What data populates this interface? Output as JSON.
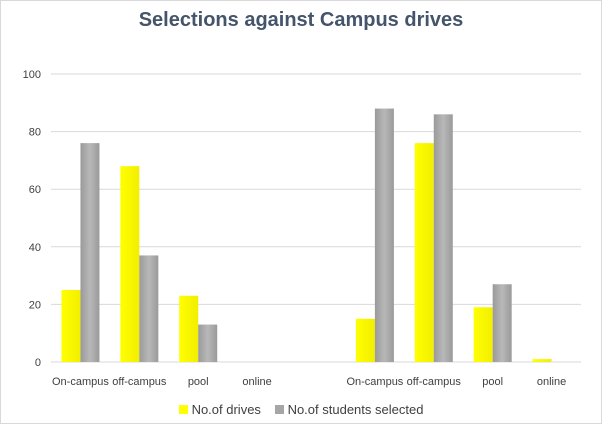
{
  "chart_data": {
    "type": "bar",
    "title": "Selections against Campus drives",
    "xlabel": "",
    "ylabel": "",
    "ylim": [
      0,
      100
    ],
    "yticks": [
      0,
      20,
      40,
      60,
      80,
      100
    ],
    "grid": true,
    "legend_position": "bottom",
    "categories": [
      "On-campus",
      "off-campus",
      "pool",
      "online",
      "",
      "On-campus",
      "off-campus",
      "pool",
      "online"
    ],
    "series": [
      {
        "name": "No.of drives",
        "color": "#ffff00",
        "values": [
          25,
          68,
          23,
          null,
          null,
          15,
          76,
          19,
          1
        ]
      },
      {
        "name": "No.of students selected",
        "color": "#a6a6a6",
        "values": [
          76,
          37,
          13,
          null,
          null,
          88,
          86,
          27,
          null
        ]
      }
    ]
  }
}
